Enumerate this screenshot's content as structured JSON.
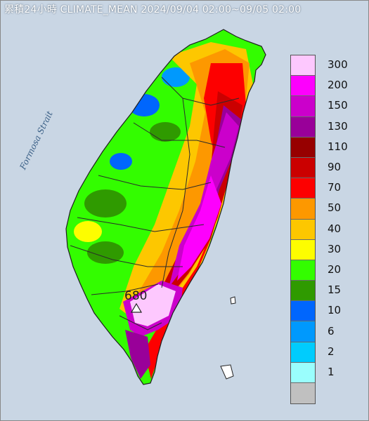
{
  "title": "累積24小時 CLIMATE_MEAN 2024/09/04 02:00~09/05 02:00",
  "sea_label": "Formosa Strait",
  "peak": {
    "value": "680",
    "marker": "triangle-icon"
  },
  "legend": {
    "items": [
      {
        "label": "300",
        "color": "#fdc8fe"
      },
      {
        "label": "200",
        "color": "#fd00fd"
      },
      {
        "label": "150",
        "color": "#cb00cb"
      },
      {
        "label": "130",
        "color": "#990099"
      },
      {
        "label": "110",
        "color": "#970000"
      },
      {
        "label": "90",
        "color": "#cb0000"
      },
      {
        "label": "70",
        "color": "#fd0000"
      },
      {
        "label": "50",
        "color": "#fd9800"
      },
      {
        "label": "40",
        "color": "#fdc700"
      },
      {
        "label": "30",
        "color": "#fdfd00"
      },
      {
        "label": "20",
        "color": "#33fd00"
      },
      {
        "label": "15",
        "color": "#2f9a00"
      },
      {
        "label": "10",
        "color": "#0066fd"
      },
      {
        "label": "6",
        "color": "#0099fd"
      },
      {
        "label": "2",
        "color": "#00ccfd"
      },
      {
        "label": "1",
        "color": "#9afefd"
      },
      {
        "label": "",
        "color": "#c0c0c0"
      }
    ]
  },
  "colors": {
    "sea": "#c9d6e4",
    "boundary": "#2a2a2a"
  }
}
